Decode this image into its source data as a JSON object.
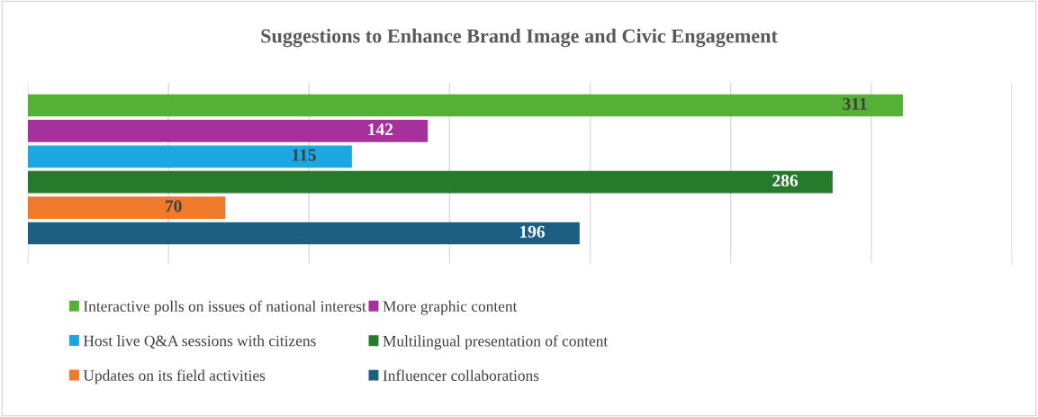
{
  "chart_data": {
    "type": "bar",
    "orientation": "horizontal",
    "title": "Suggestions to Enhance Brand Image and Civic Engagement",
    "categories": [
      null
    ],
    "series": [
      {
        "name": "Interactive polls on issues of national interest",
        "color": "#55b036",
        "values": [
          311
        ]
      },
      {
        "name": "More graphic content",
        "color": "#a6319c",
        "values": [
          142
        ]
      },
      {
        "name": "Host live Q&A sessions with citizens",
        "color": "#1ba8e2",
        "values": [
          115
        ]
      },
      {
        "name": "Multilingual presentation of content",
        "color": "#267a2c",
        "values": [
          286
        ]
      },
      {
        "name": "Updates on its field activities",
        "color": "#f07a2c",
        "values": [
          70
        ]
      },
      {
        "name": "Influencer collaborations",
        "color": "#1d5f82",
        "values": [
          196
        ]
      }
    ],
    "xlim": [
      0,
      350
    ],
    "xticks": [
      {
        "value": 0,
        "label": null
      },
      {
        "value": 50,
        "label": null
      },
      {
        "value": 100,
        "label": null
      },
      {
        "value": 150,
        "label": null
      },
      {
        "value": 200,
        "label": null
      },
      {
        "value": 250,
        "label": null
      },
      {
        "value": 300,
        "label": null
      },
      {
        "value": 350,
        "label": null
      }
    ],
    "grid": "x",
    "data_labels": true,
    "legend": "bottom"
  }
}
